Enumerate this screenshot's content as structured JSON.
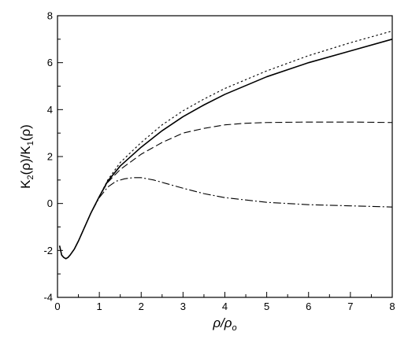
{
  "chart_data": {
    "type": "line",
    "title": "",
    "xlabel": {
      "main": "ρ/ρ",
      "sub": "o"
    },
    "ylabel": {
      "p1": "K",
      "s1": "2",
      "p2": "(ρ)/K",
      "s2": "1",
      "p3": "(ρ)"
    },
    "xlim": [
      0,
      8
    ],
    "ylim": [
      -4,
      8
    ],
    "xticks": [
      0,
      1,
      2,
      3,
      4,
      5,
      6,
      7,
      8
    ],
    "yticks": [
      -4,
      -2,
      0,
      2,
      4,
      6,
      8
    ],
    "xtick_labels": [
      "0",
      "1",
      "2",
      "3",
      "4",
      "5",
      "6",
      "7",
      "8"
    ],
    "ytick_labels": [
      "-4",
      "-2",
      "0",
      "2",
      "4",
      "6",
      "8"
    ],
    "grid": false,
    "legend": "none",
    "series": [
      {
        "style": "solid",
        "x": [
          0.05,
          0.1,
          0.15,
          0.2,
          0.25,
          0.3,
          0.4,
          0.5,
          0.6,
          0.8,
          1.0,
          1.2,
          1.5,
          2.0,
          2.5,
          3.0,
          3.5,
          4.0,
          5.0,
          6.0,
          7.0,
          8.0
        ],
        "y": [
          -1.8,
          -2.2,
          -2.3,
          -2.35,
          -2.3,
          -2.2,
          -1.95,
          -1.6,
          -1.2,
          -0.4,
          0.3,
          0.95,
          1.6,
          2.4,
          3.1,
          3.7,
          4.2,
          4.65,
          5.4,
          6.0,
          6.5,
          7.0
        ]
      },
      {
        "style": "dotted",
        "x": [
          0.05,
          0.1,
          0.15,
          0.2,
          0.25,
          0.3,
          0.4,
          0.5,
          0.6,
          0.8,
          1.0,
          1.2,
          1.5,
          2.0,
          2.5,
          3.0,
          3.5,
          4.0,
          5.0,
          6.0,
          7.0,
          8.0
        ],
        "y": [
          -1.8,
          -2.2,
          -2.3,
          -2.35,
          -2.3,
          -2.2,
          -1.95,
          -1.6,
          -1.2,
          -0.4,
          0.3,
          1.0,
          1.75,
          2.6,
          3.35,
          3.95,
          4.45,
          4.9,
          5.65,
          6.3,
          6.85,
          7.35
        ]
      },
      {
        "style": "dashed",
        "x": [
          0.05,
          0.1,
          0.15,
          0.2,
          0.25,
          0.3,
          0.4,
          0.5,
          0.6,
          0.8,
          1.0,
          1.2,
          1.5,
          2.0,
          2.5,
          3.0,
          3.5,
          4.0,
          4.5,
          5.0,
          6.0,
          7.0,
          8.0
        ],
        "y": [
          -1.8,
          -2.2,
          -2.3,
          -2.35,
          -2.3,
          -2.2,
          -1.95,
          -1.6,
          -1.2,
          -0.4,
          0.3,
          0.9,
          1.45,
          2.1,
          2.6,
          3.0,
          3.2,
          3.35,
          3.42,
          3.45,
          3.47,
          3.47,
          3.45
        ]
      },
      {
        "style": "dashdot",
        "x": [
          0.05,
          0.1,
          0.15,
          0.2,
          0.25,
          0.3,
          0.4,
          0.5,
          0.6,
          0.8,
          1.0,
          1.2,
          1.4,
          1.6,
          1.8,
          2.0,
          2.3,
          2.6,
          3.0,
          3.5,
          4.0,
          5.0,
          6.0,
          7.0,
          8.0
        ],
        "y": [
          -1.8,
          -2.2,
          -2.3,
          -2.35,
          -2.3,
          -2.2,
          -1.95,
          -1.6,
          -1.2,
          -0.4,
          0.25,
          0.7,
          0.95,
          1.05,
          1.1,
          1.1,
          1.0,
          0.85,
          0.65,
          0.42,
          0.25,
          0.05,
          -0.05,
          -0.1,
          -0.15
        ]
      }
    ]
  }
}
